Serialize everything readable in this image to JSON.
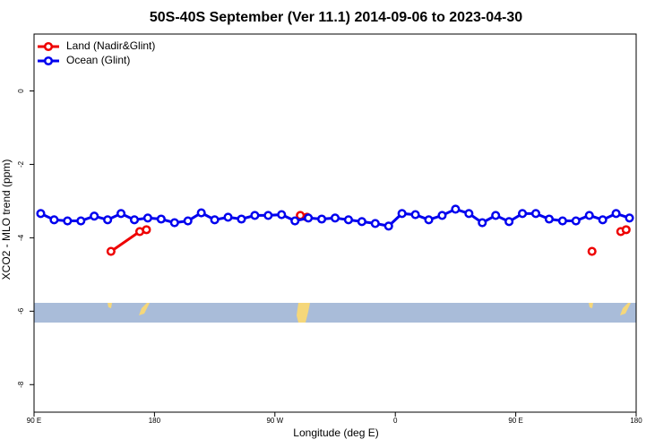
{
  "chart_data": {
    "type": "line",
    "title": "50S-40S September (Ver 11.1)   2014-09-06 to 2023-04-30",
    "x_label": "Longitude (deg E)",
    "y_label": "XCO2 - MLO trend (ppm)",
    "xlim": [
      90,
      540
    ],
    "xticks": [
      {
        "value": 90,
        "label": "90 E"
      },
      {
        "value": 180,
        "label": "180"
      },
      {
        "value": 270,
        "label": "90 W"
      },
      {
        "value": 360,
        "label": "0"
      },
      {
        "value": 450,
        "label": "90 E"
      },
      {
        "value": 540,
        "label": "180"
      }
    ],
    "ylim": [
      -8.75,
      1.55
    ],
    "yticks": [
      0,
      -2,
      -4,
      -6,
      -8
    ],
    "grid": false,
    "legend": "top-left",
    "series": [
      {
        "name": "Land (Nadir&Glint)",
        "color": "#ee0000",
        "x": [
          147.5,
          169,
          174,
          null,
          289,
          294,
          null,
          507,
          null,
          528.5,
          532.5
        ],
        "values": [
          -4.37,
          -3.83,
          -3.78,
          null,
          -3.39,
          -3.44,
          null,
          -4.37,
          null,
          -3.83,
          -3.78
        ]
      },
      {
        "name": "Ocean (Glint)",
        "color": "#0000ee",
        "x": [
          95,
          105,
          115,
          125,
          135,
          145,
          155,
          165,
          175,
          185,
          195,
          205,
          215,
          225,
          235,
          245,
          255,
          265,
          275,
          285,
          295,
          305,
          315,
          325,
          335,
          345,
          355,
          365,
          375,
          385,
          395,
          405,
          415,
          425,
          435,
          445,
          455,
          465,
          475,
          485,
          495,
          505,
          515,
          525,
          535
        ],
        "values": [
          -3.34,
          -3.51,
          -3.54,
          -3.54,
          -3.41,
          -3.51,
          -3.34,
          -3.51,
          -3.46,
          -3.49,
          -3.59,
          -3.54,
          -3.32,
          -3.51,
          -3.44,
          -3.49,
          -3.39,
          -3.39,
          -3.37,
          -3.54,
          -3.46,
          -3.49,
          -3.46,
          -3.51,
          -3.56,
          -3.61,
          -3.68,
          -3.34,
          -3.37,
          -3.51,
          -3.39,
          -3.22,
          -3.34,
          -3.59,
          -3.39,
          -3.56,
          -3.34,
          -3.34,
          -3.49,
          -3.54,
          -3.54,
          -3.39,
          -3.51,
          -3.34,
          -3.46
        ]
      }
    ]
  }
}
